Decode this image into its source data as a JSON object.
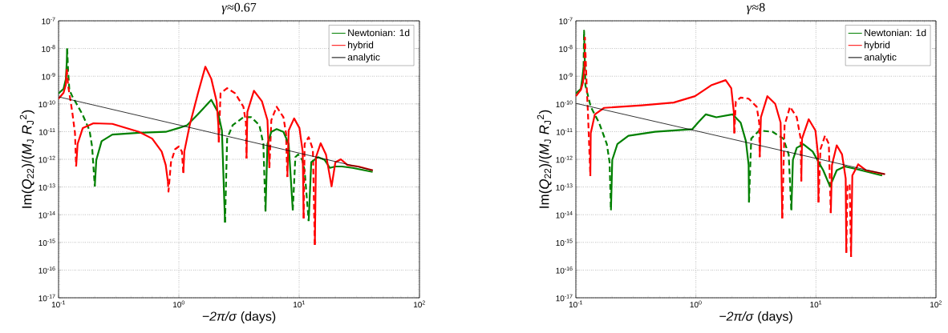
{
  "chart_data": [
    {
      "type": "line",
      "title": "*γ*≈0.67",
      "xlabel": "*−2π/σ* (days)",
      "ylabel": "Im(*Q*$_{22}$)/(*M*$_{J}$ *R*$_{J}$$^{2}$)",
      "log": "xy",
      "grid": true,
      "legend": "top right",
      "xlim": [
        0.1,
        100
      ],
      "ylim": [
        1e-17,
        1e-07
      ],
      "xticks": [
        {
          "value": 0.1,
          "label": "10$^{-1}$"
        },
        {
          "value": 1,
          "label": "10$^{0}$"
        },
        {
          "value": 10,
          "label": "10$^{1}$"
        },
        {
          "value": 100,
          "label": "10$^{2}$"
        }
      ],
      "yticks": [
        {
          "value": 1e-17,
          "label": "10$^{-17}$"
        },
        {
          "value": 1e-16,
          "label": "10$^{-16}$"
        },
        {
          "value": 1e-15,
          "label": "10$^{-15}$"
        },
        {
          "value": 1e-14,
          "label": "10$^{-14}$"
        },
        {
          "value": 1e-13,
          "label": "10$^{-13}$"
        },
        {
          "value": 1e-12,
          "label": "10$^{-12}$"
        },
        {
          "value": 1e-11,
          "label": "10$^{-11}$"
        },
        {
          "value": 1e-10,
          "label": "10$^{-10}$"
        },
        {
          "value": 1e-09,
          "label": "10$^{-9}$"
        },
        {
          "value": 1e-08,
          "label": "10$^{-8}$"
        },
        {
          "value": 1e-07,
          "label": "10$^{-7}$"
        }
      ],
      "series": [
        {
          "color": "#008000",
          "line_style": "dashed",
          "x": [
            0.118,
            0.12,
            0.123,
            0.13,
            0.158,
            0.181,
            0.19,
            0.2
          ],
          "values": [
            1e-08,
            1.6e-09,
            3.2e-10,
            1.9e-10,
            4.2e-11,
            1.1e-11,
            2.9e-12,
            1.05e-13
          ]
        },
        {
          "color": "#008000",
          "line_style": "dashed",
          "x": [
            2.42,
            2.52,
            2.8,
            3.44,
            4.0,
            4.67,
            5.04,
            5.25
          ],
          "values": [
            5.2e-15,
            5.6e-12,
            1.7e-11,
            3.3e-11,
            3.3e-11,
            1.7e-11,
            3.6e-12,
            1.3e-14
          ]
        },
        {
          "color": "#008000",
          "line_style": "dashed",
          "x": [
            8.85,
            9.3,
            9.8,
            10.6,
            11.1,
            12.0
          ],
          "values": [
            1.45e-14,
            1.2e-12,
            1.5e-12,
            9.5e-13,
            4e-13,
            5.9e-15
          ]
        },
        {
          "color": "#ff0000",
          "line_style": "dashed",
          "x": [
            0.117,
            0.12,
            0.13,
            0.137,
            0.14
          ],
          "values": [
            1.8e-09,
            4.7e-10,
            5.1e-11,
            8.7e-12,
            5.5e-13
          ]
        },
        {
          "color": "#ff0000",
          "line_style": "dashed",
          "x": [
            0.81,
            0.82,
            0.86,
            0.93,
            1,
            1.06,
            1.09
          ],
          "values": [
            1.6e-13,
            6.8e-14,
            7.8e-13,
            2.3e-12,
            2.9e-12,
            1.9e-12,
            3.2e-13
          ]
        },
        {
          "color": "#ff0000",
          "line_style": "dashed",
          "x": [
            2.15,
            2.22,
            2.52,
            2.94,
            3.44,
            3.61,
            3.65
          ],
          "values": [
            4.1e-12,
            2.4e-10,
            3.7e-10,
            2.4e-10,
            7.9e-11,
            2.1e-11,
            1.07e-12
          ]
        },
        {
          "color": "#ff0000",
          "line_style": "dashed",
          "x": [
            5.66,
            5.87,
            6.5,
            7.4,
            7.78,
            7.98
          ],
          "values": [
            4.9e-13,
            2.6e-11,
            7.9e-11,
            3.3e-11,
            8.7e-12,
            2.3e-13
          ]
        },
        {
          "color": "#ff0000",
          "line_style": "dashed",
          "x": [
            10.9,
            11.1,
            12.0,
            13.0,
            13.5
          ],
          "values": [
            7.4e-15,
            3.6e-12,
            6.3e-12,
            2.3e-12,
            8.1e-16
          ]
        },
        {
          "name": "Newtonian: 1d",
          "color": "#008000",
          "x": [
            0.1,
            0.11,
            0.115,
            0.117,
            0.118
          ],
          "values": [
            2.4e-10,
            3.5e-10,
            7.9e-10,
            3.2e-09,
            1e-08
          ]
        },
        {
          "color": "#008000",
          "x": [
            0.2,
            0.206,
            0.228,
            0.28,
            0.468,
            0.778,
            1,
            1.17,
            1.44,
            1.86,
            2.11,
            2.28,
            2.42
          ],
          "values": [
            1.05e-13,
            9.5e-13,
            4.5e-12,
            7.8e-12,
            9.1e-12,
            9.8e-12,
            1.35e-11,
            1.7e-11,
            4.2e-11,
            1.4e-10,
            5.1e-11,
            1.1e-11,
            5.2e-15
          ]
        },
        {
          "color": "#008000",
          "x": [
            5.25,
            5.45,
            5.87,
            6.5,
            7.4,
            8.18,
            8.85
          ],
          "values": [
            1.3e-14,
            3.6e-12,
            9.8e-12,
            1.23e-11,
            9.8e-12,
            3.6e-12,
            1.45e-14
          ]
        },
        {
          "color": "#008000",
          "x": [
            12.0,
            12.6,
            14.3,
            16.3,
            18.0,
            20.0,
            22.7,
            27.8,
            40.8
          ],
          "values": [
            5.9e-15,
            7.8e-13,
            1.2e-12,
            9.5e-13,
            4.9e-13,
            5.5e-13,
            5.5e-13,
            4.9e-13,
            3.5e-13
          ]
        },
        {
          "name": "hybrid",
          "color": "#ff0000",
          "x": [
            0.1,
            0.11,
            0.115,
            0.117
          ],
          "values": [
            1.55e-10,
            2.5e-10,
            5e-10,
            1.8e-09
          ]
        },
        {
          "color": "#ff0000",
          "x": [
            0.14,
            0.144,
            0.159,
            0.195,
            0.28,
            0.467,
            0.6,
            0.72,
            0.778,
            0.81
          ],
          "values": [
            5.5e-13,
            3.6e-12,
            1.35e-11,
            2e-11,
            1.9e-11,
            9.8e-12,
            5.6e-12,
            1.9e-12,
            6.2e-13,
            1.6e-13
          ]
        },
        {
          "color": "#ff0000",
          "x": [
            1.09,
            1.11,
            1.23,
            1.44,
            1.66,
            1.86,
            2.06,
            2.13,
            2.15
          ],
          "values": [
            3.2e-13,
            1.9e-12,
            1.7e-11,
            2.4e-10,
            2.2e-09,
            8.1e-10,
            1.23e-10,
            1.7e-11,
            4.1e-12
          ]
        },
        {
          "color": "#ff0000",
          "x": [
            3.65,
            3.71,
            4.21,
            4.91,
            5.45,
            5.66
          ],
          "values": [
            1.07e-12,
            5.1e-11,
            3e-10,
            1.23e-10,
            2.6e-11,
            4.9e-13
          ]
        },
        {
          "color": "#ff0000",
          "x": [
            7.98,
            8.18,
            9.08,
            10.05,
            10.7,
            10.9
          ],
          "values": [
            2.3e-13,
            1.1e-11,
            3e-11,
            1.35e-11,
            1.9e-12,
            7.4e-15
          ]
        },
        {
          "color": "#ff0000",
          "x": [
            13.5,
            13.8,
            15.1,
            16.7,
            18.6,
            20.0,
            22.2,
            25.2,
            31.0,
            41.0
          ],
          "values": [
            8.1e-16,
            1.2e-12,
            3.8e-12,
            1.5e-12,
            1.05e-13,
            7.8e-13,
            1e-12,
            6.2e-13,
            5.5e-13,
            4e-13
          ]
        },
        {
          "name": "analytic",
          "color": "#000000",
          "x": [
            0.1,
            41.0
          ],
          "values": [
            1.8e-10,
            4e-13
          ]
        }
      ]
    },
    {
      "type": "line",
      "title": "*γ*≈8",
      "xlabel": "*−2π/σ* (days)",
      "ylabel": "Im(*Q*$_{22}$)/(*M*$_{J}$ *R*$_{J}$$^{2}$)",
      "log": "xy",
      "grid": true,
      "legend": "top right",
      "xlim": [
        0.1,
        100
      ],
      "ylim": [
        1e-17,
        1e-07
      ],
      "xticks": [
        {
          "value": 0.1,
          "label": "10$^{-1}$"
        },
        {
          "value": 1,
          "label": "10$^{0}$"
        },
        {
          "value": 10,
          "label": "10$^{1}$"
        },
        {
          "value": 100,
          "label": "10$^{2}$"
        }
      ],
      "yticks": [
        {
          "value": 1e-17,
          "label": "10$^{-17}$"
        },
        {
          "value": 1e-16,
          "label": "10$^{-16}$"
        },
        {
          "value": 1e-15,
          "label": "10$^{-15}$"
        },
        {
          "value": 1e-14,
          "label": "10$^{-14}$"
        },
        {
          "value": 1e-13,
          "label": "10$^{-13}$"
        },
        {
          "value": 1e-12,
          "label": "10$^{-12}$"
        },
        {
          "value": 1e-11,
          "label": "10$^{-11}$"
        },
        {
          "value": 1e-10,
          "label": "10$^{-10}$"
        },
        {
          "value": 1e-09,
          "label": "10$^{-9}$"
        },
        {
          "value": 1e-08,
          "label": "10$^{-8}$"
        },
        {
          "value": 1e-07,
          "label": "10$^{-7}$"
        }
      ],
      "series": [
        {
          "color": "#008000",
          "line_style": "dashed",
          "x": [
            0.116,
            0.117,
            0.12,
            0.133,
            0.156,
            0.181,
            0.191,
            0.196
          ],
          "values": [
            2.2e-09,
            4.4e-08,
            4.7e-10,
            7.9e-11,
            2.1e-11,
            3.6e-12,
            7.8e-13,
            1.45e-14
          ]
        },
        {
          "color": "#008000",
          "line_style": "dashed",
          "x": [
            2.77,
            2.89,
            3.37,
            4.36,
            5.35,
            5.93,
            6.24
          ],
          "values": [
            2.8e-14,
            5.6e-12,
            1.1e-11,
            9.8e-12,
            5.6e-12,
            1.5e-12,
            1.45e-14
          ]
        },
        {
          "color": "#ff0000",
          "line_style": "dashed",
          "x": [
            0.118,
            0.119,
            0.123,
            0.126,
            0.132
          ],
          "values": [
            2.2e-09,
            2.5e-08,
            4.7e-10,
            5.1e-11,
            2.5e-13
          ]
        },
        {
          "color": "#ff0000",
          "line_style": "dashed",
          "x": [
            2.09,
            2.15,
            2.36,
            2.75,
            3.21,
            3.37,
            3.4
          ],
          "values": [
            8.7e-12,
            1.23e-10,
            1.7e-10,
            1.55e-10,
            7.9e-11,
            2.1e-11,
            1.2e-12
          ]
        },
        {
          "color": "#ff0000",
          "line_style": "dashed",
          "x": [
            5.24,
            5.48,
            6.08,
            6.92,
            7.46,
            7.55
          ],
          "values": [
            7.4e-15,
            1.7e-11,
            7.9e-11,
            3.3e-11,
            5.6e-12,
            1.6e-13
          ]
        },
        {
          "color": "#ff0000",
          "line_style": "dashed",
          "x": [
            10.5,
            10.9,
            11.9,
            12.8,
            13.3
          ],
          "values": [
            2.8e-14,
            2.3e-12,
            7.1e-12,
            3.6e-12,
            1.15e-14
          ]
        },
        {
          "color": "#ff0000",
          "line_style": "dashed",
          "x": [
            17.9,
            18.3,
            19.1,
            19.6
          ],
          "values": [
            4.2e-16,
            1.05e-13,
            1.3e-13,
            3e-16
          ]
        },
        {
          "name": "Newtonian: 1d",
          "color": "#008000",
          "x": [
            0.1,
            0.11,
            0.113,
            0.116
          ],
          "values": [
            2.4e-10,
            3.5e-10,
            7.9e-10,
            2.2e-09
          ]
        },
        {
          "color": "#008000",
          "x": [
            0.196,
            0.201,
            0.222,
            0.274,
            0.456,
            0.935,
            1.04,
            1.21,
            1.48,
            2.02,
            2.36,
            2.61,
            2.75,
            2.77
          ],
          "values": [
            1.45e-14,
            9.5e-13,
            3.6e-12,
            7.1e-12,
            9.8e-12,
            1.23e-11,
            2.1e-11,
            4.2e-11,
            3.3e-11,
            4.2e-11,
            2.1e-11,
            4.5e-12,
            6.2e-13,
            2.8e-14
          ]
        },
        {
          "color": "#008000",
          "x": [
            6.24,
            6.43,
            6.92,
            7.85,
            9.4,
            11.5,
            13.1,
            14.9,
            17.4,
            21.4,
            35.6
          ],
          "values": [
            1.45e-14,
            9.5e-13,
            2.6e-12,
            3.5e-12,
            1.9e-12,
            4e-13,
            1.05e-13,
            4e-13,
            5.5e-13,
            4.5e-13,
            2.6e-13
          ]
        },
        {
          "name": "hybrid",
          "color": "#ff0000",
          "x": [
            0.1,
            0.11,
            0.115,
            0.118
          ],
          "values": [
            1.9e-10,
            3.2e-10,
            6.3e-10,
            2.2e-09
          ]
        },
        {
          "color": "#ff0000",
          "x": [
            0.132,
            0.133,
            0.144,
            0.172,
            0.353,
            0.653,
            0.984,
            1.34,
            1.77,
            1.97,
            2.07,
            2.09
          ],
          "values": [
            2.5e-13,
            8.7e-12,
            4.2e-11,
            7.2e-11,
            8.9e-11,
            1.12e-10,
            1.9e-10,
            4.7e-10,
            7.2e-10,
            3.7e-10,
            5.1e-11,
            8.7e-12
          ]
        },
        {
          "color": "#ff0000",
          "x": [
            3.4,
            3.48,
            3.94,
            4.58,
            5.08,
            5.24
          ],
          "values": [
            1.2e-12,
            3.3e-11,
            1.9e-10,
            1e-10,
            2.1e-11,
            7.4e-15
          ]
        },
        {
          "color": "#ff0000",
          "x": [
            7.55,
            7.66,
            8.71,
            9.9,
            10.4,
            10.5
          ],
          "values": [
            1.6e-13,
            5.6e-12,
            2.8e-11,
            1.1e-11,
            1.5e-12,
            2.8e-14
          ]
        },
        {
          "color": "#ff0000",
          "x": [
            13.3,
            13.6,
            14.9,
            16.5,
            17.7,
            17.9
          ],
          "values": [
            1.15e-14,
            6.2e-13,
            3.2e-12,
            1.5e-12,
            2e-13,
            4.2e-16
          ]
        },
        {
          "color": "#ff0000",
          "x": [
            19.6,
            20.1,
            22.5,
            26.2,
            37.6
          ],
          "values": [
            3e-16,
            2.6e-13,
            6.6e-13,
            4e-13,
            2.9e-13
          ]
        },
        {
          "name": "analytic",
          "color": "#000000",
          "x": [
            0.1,
            37.6
          ],
          "values": [
            1.05e-10,
            2.9e-13
          ]
        }
      ]
    }
  ]
}
